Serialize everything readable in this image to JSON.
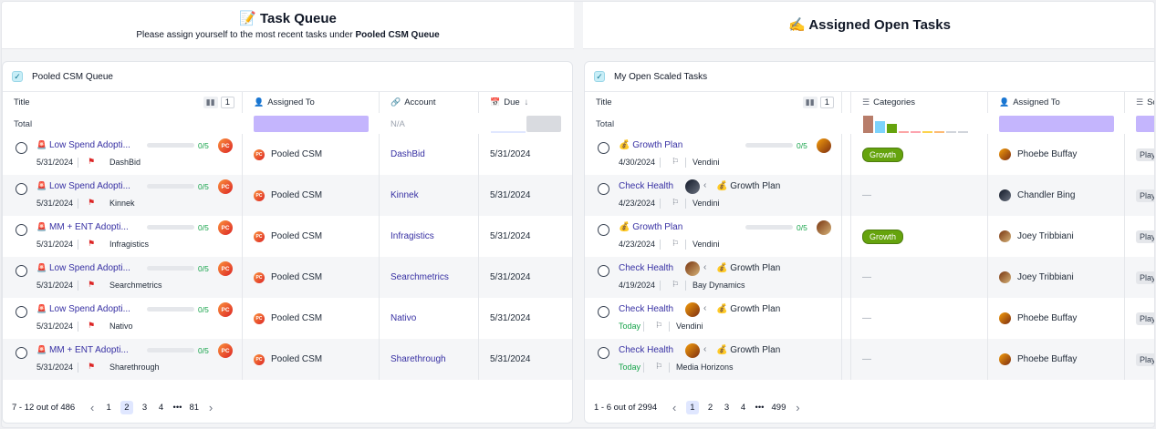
{
  "left": {
    "title": "📝 Task Queue",
    "subtitle_prefix": "Please assign yourself to the most recent tasks under ",
    "subtitle_bold": "Pooled CSM Queue",
    "card_title": "Pooled CSM Queue",
    "columns": {
      "title": "Title",
      "title_count": "1",
      "assigned": "Assigned To",
      "account": "Account",
      "due": "Due"
    },
    "total_label": "Total",
    "account_total": "N/A",
    "rows": [
      {
        "title": "Low Spend Adopti...",
        "progress": "0/5",
        "date": "5/31/2024",
        "account": "DashBid",
        "assigned": "Pooled CSM",
        "due": "5/31/2024"
      },
      {
        "title": "Low Spend Adopti...",
        "progress": "0/5",
        "date": "5/31/2024",
        "account": "Kinnek",
        "assigned": "Pooled CSM",
        "due": "5/31/2024"
      },
      {
        "title": "MM + ENT Adopti...",
        "progress": "0/5",
        "date": "5/31/2024",
        "account": "Infragistics",
        "assigned": "Pooled CSM",
        "due": "5/31/2024"
      },
      {
        "title": "Low Spend Adopti...",
        "progress": "0/5",
        "date": "5/31/2024",
        "account": "Searchmetrics",
        "assigned": "Pooled CSM",
        "due": "5/31/2024"
      },
      {
        "title": "Low Spend Adopti...",
        "progress": "0/5",
        "date": "5/31/2024",
        "account": "Nativo",
        "assigned": "Pooled CSM",
        "due": "5/31/2024"
      },
      {
        "title": "MM + ENT Adopti...",
        "progress": "0/5",
        "date": "5/31/2024",
        "account": "Sharethrough",
        "assigned": "Pooled CSM",
        "due": "5/31/2024"
      }
    ],
    "avatar_initials": "PC",
    "pager": {
      "range": "7 - 12 out of 486",
      "pages": [
        "1",
        "2",
        "3",
        "4",
        "•••",
        "81"
      ],
      "current": "2",
      "prev": "‹",
      "next": "›"
    }
  },
  "right": {
    "title": "✍️ Assigned Open Tasks",
    "card_title": "My Open Scaled Tasks",
    "columns": {
      "title": "Title",
      "title_count": "1",
      "categories": "Categories",
      "assigned": "Assigned To",
      "status": "Sc"
    },
    "total_label": "Total",
    "rows": [
      {
        "title": "💰 Growth Plan",
        "progress": "0/5",
        "date": "4/30/2024",
        "account": "Vendini",
        "category": "Growth",
        "assigned": "Phoebe Buffay",
        "status": "Play",
        "parent": ""
      },
      {
        "title": "Check Health",
        "progress": "",
        "date": "4/23/2024",
        "account": "Vendini",
        "category": "—",
        "assigned": "Chandler Bing",
        "status": "Play",
        "parent": "💰 Growth Plan"
      },
      {
        "title": "💰 Growth Plan",
        "progress": "0/5",
        "date": "4/23/2024",
        "account": "Vendini",
        "category": "Growth",
        "assigned": "Joey Tribbiani",
        "status": "Play",
        "parent": ""
      },
      {
        "title": "Check Health",
        "progress": "",
        "date": "4/19/2024",
        "account": "Bay Dynamics",
        "category": "—",
        "assigned": "Joey Tribbiani",
        "status": "Play",
        "parent": "💰 Growth Plan"
      },
      {
        "title": "Check Health",
        "progress": "",
        "date": "Today",
        "account": "Vendini",
        "category": "—",
        "assigned": "Phoebe Buffay",
        "status": "Play",
        "parent": "💰 Growth Plan"
      },
      {
        "title": "Check Health",
        "progress": "",
        "date": "Today",
        "account": "Media Horizons",
        "category": "—",
        "assigned": "Phoebe Buffay",
        "status": "Play",
        "parent": "💰 Growth Plan"
      }
    ],
    "pager": {
      "range": "1 - 6 out of 2994",
      "pages": [
        "1",
        "2",
        "3",
        "4",
        "•••",
        "499"
      ],
      "current": "1",
      "prev": "‹",
      "next": "›"
    }
  },
  "colors": {
    "link": "#3730a3",
    "growth": "#65a30d",
    "accent_bar": "#c4b5fd"
  }
}
